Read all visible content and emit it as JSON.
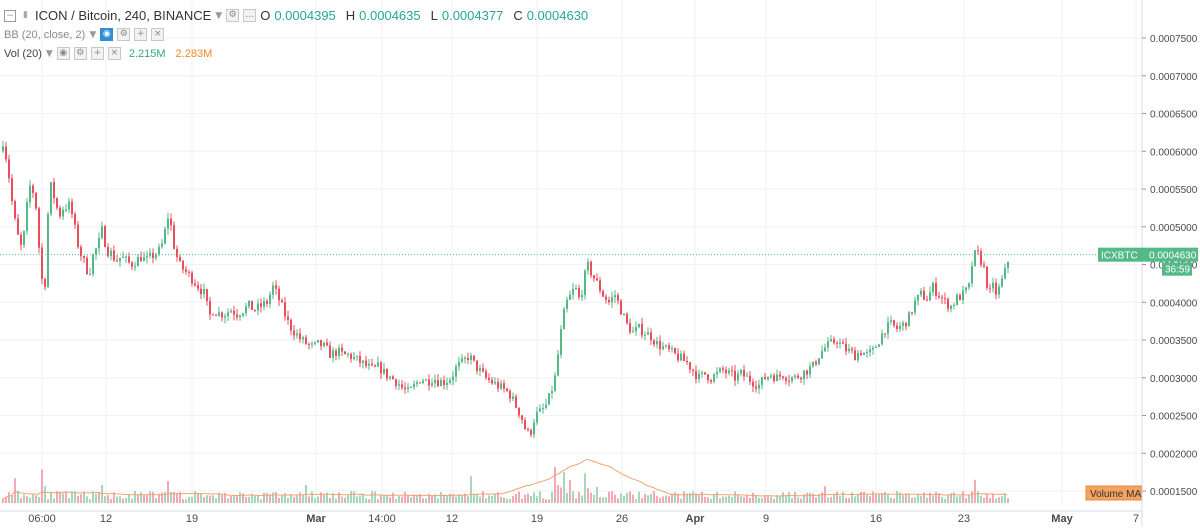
{
  "header": {
    "symbol": "ICON / Bitcoin, 240, BINANCE",
    "open_label": "O",
    "open": "0.0004395",
    "high_label": "H",
    "high": "0.0004635",
    "low_label": "L",
    "low": "0.0004377",
    "close_label": "C",
    "close": "0.0004630"
  },
  "indicators": {
    "bb_label": "BB (20, close, 2)",
    "vol_label": "Vol (20)",
    "vol_value": "2.215M",
    "vol_ma_value": "2.283M"
  },
  "price_tag": {
    "symbol": "ICXBTC",
    "price": "0.0004630",
    "countdown": "36:59"
  },
  "volume_ma_badge": "Volume MA",
  "colors": {
    "up": "#53b987",
    "down": "#eb4d5c",
    "vol_up": "#a6d7bb",
    "vol_down": "#f2a9b2",
    "vol_ma": "#f0a474",
    "grid": "#eef1f5",
    "accent_blue": "#2e8ed8"
  },
  "chart_data": {
    "type": "candlestick",
    "title": "ICON / Bitcoin, 240, BINANCE",
    "y_axis": {
      "ticks": [
        "0.0001500",
        "0.0002000",
        "0.0002500",
        "0.0003000",
        "0.0003500",
        "0.0004000",
        "0.0004500",
        "0.0005000",
        "0.0005500",
        "0.0006000",
        "0.0006500",
        "0.0007000",
        "0.0007500"
      ],
      "range": [
        0.00011,
        0.0008
      ]
    },
    "x_axis": {
      "ticks": [
        "06:00",
        "12",
        "19",
        "Mar",
        "14:00",
        "12",
        "19",
        "26",
        "Apr",
        "9",
        "16",
        "23",
        "May",
        "7"
      ]
    },
    "grid": true,
    "series": [
      {
        "type": "price_path",
        "points": [
          [
            0,
            0.0006
          ],
          [
            3,
            0.00062
          ],
          [
            6,
            0.00058
          ],
          [
            9,
            0.00056
          ],
          [
            12,
            0.00052
          ],
          [
            15,
            0.0005
          ],
          [
            18,
            0.00048
          ],
          [
            21,
            0.00047
          ],
          [
            24,
            0.0005
          ],
          [
            27,
            0.00054
          ],
          [
            30,
            0.00056
          ],
          [
            33,
            0.00054
          ],
          [
            36,
            0.00052
          ],
          [
            39,
            0.00045
          ],
          [
            42,
            0.00042
          ],
          [
            45,
            0.00043
          ],
          [
            48,
            0.00056
          ],
          [
            51,
            0.00055
          ],
          [
            54,
            0.000535
          ],
          [
            57,
            0.00052
          ],
          [
            60,
            0.000515
          ],
          [
            63,
            0.00053
          ],
          [
            66,
            0.000525
          ],
          [
            69,
            0.00053
          ],
          [
            72,
            0.00051
          ],
          [
            75,
            0.00049
          ],
          [
            78,
            0.00047
          ],
          [
            81,
            0.00046
          ],
          [
            84,
            0.00045
          ],
          [
            87,
            0.00044
          ],
          [
            90,
            0.000445
          ],
          [
            93,
            0.00047
          ],
          [
            96,
            0.00047
          ],
          [
            99,
            0.000485
          ],
          [
            102,
            0.0005
          ],
          [
            105,
            0.00047
          ],
          [
            110,
            0.000465
          ],
          [
            115,
            0.000455
          ],
          [
            120,
            0.00046
          ],
          [
            125,
            0.000455
          ],
          [
            130,
            0.00045
          ],
          [
            135,
            0.000455
          ],
          [
            140,
            0.00046
          ],
          [
            145,
            0.000455
          ],
          [
            150,
            0.00046
          ],
          [
            155,
            0.000465
          ],
          [
            160,
            0.00047
          ],
          [
            165,
            0.0005
          ],
          [
            168,
            0.00052
          ],
          [
            172,
            0.00048
          ],
          [
            178,
            0.00045
          ],
          [
            185,
            0.00044
          ],
          [
            192,
            0.00043
          ],
          [
            198,
            0.00042
          ],
          [
            204,
            0.00041
          ],
          [
            208,
            0.00038
          ],
          [
            212,
            0.00039
          ],
          [
            218,
            0.000385
          ],
          [
            224,
            0.000385
          ],
          [
            230,
            0.00039
          ],
          [
            236,
            0.000385
          ],
          [
            242,
            0.00039
          ],
          [
            248,
            0.000395
          ],
          [
            254,
            0.00039
          ],
          [
            260,
            0.000395
          ],
          [
            266,
            0.0004
          ],
          [
            272,
            0.00042
          ],
          [
            276,
            0.00041
          ],
          [
            282,
            0.00039
          ],
          [
            288,
            0.00037
          ],
          [
            294,
            0.00036
          ],
          [
            300,
            0.00035
          ],
          [
            306,
            0.000345
          ],
          [
            312,
            0.00034
          ],
          [
            318,
            0.000345
          ],
          [
            324,
            0.00034
          ],
          [
            330,
            0.00033
          ],
          [
            336,
            0.000335
          ],
          [
            342,
            0.00033
          ],
          [
            348,
            0.00033
          ],
          [
            354,
            0.000325
          ],
          [
            360,
            0.00032
          ],
          [
            366,
            0.000315
          ],
          [
            372,
            0.00031
          ],
          [
            378,
            0.000315
          ],
          [
            384,
            0.000305
          ],
          [
            390,
            0.0003
          ],
          [
            396,
            0.000295
          ],
          [
            402,
            0.000285
          ],
          [
            408,
            0.00028
          ],
          [
            414,
            0.00029
          ],
          [
            420,
            0.0003
          ],
          [
            426,
            0.000295
          ],
          [
            432,
            0.0003
          ],
          [
            438,
            0.000295
          ],
          [
            444,
            0.000295
          ],
          [
            450,
            0.0003
          ],
          [
            456,
            0.000315
          ],
          [
            462,
            0.00032
          ],
          [
            468,
            0.00033
          ],
          [
            472,
            0.00032
          ],
          [
            478,
            0.00031
          ],
          [
            484,
            0.0003
          ],
          [
            490,
            0.000295
          ],
          [
            496,
            0.00029
          ],
          [
            502,
            0.000285
          ],
          [
            508,
            0.00028
          ],
          [
            514,
            0.000265
          ],
          [
            520,
            0.00025
          ],
          [
            526,
            0.000225
          ],
          [
            530,
            0.00023
          ],
          [
            534,
            0.00025
          ],
          [
            540,
            0.000255
          ],
          [
            546,
            0.000265
          ],
          [
            550,
            0.00028
          ],
          [
            554,
            0.0003
          ],
          [
            558,
            0.00034
          ],
          [
            562,
            0.00038
          ],
          [
            566,
            0.0004
          ],
          [
            570,
            0.00041
          ],
          [
            574,
            0.00042
          ],
          [
            578,
            0.000405
          ],
          [
            582,
            0.00042
          ],
          [
            586,
            0.00045
          ],
          [
            590,
            0.00044
          ],
          [
            594,
            0.00043
          ],
          [
            598,
            0.00042
          ],
          [
            602,
            0.00041
          ],
          [
            608,
            0.0004
          ],
          [
            614,
            0.00041
          ],
          [
            620,
            0.00039
          ],
          [
            626,
            0.00037
          ],
          [
            632,
            0.00036
          ],
          [
            638,
            0.000365
          ],
          [
            644,
            0.00036
          ],
          [
            650,
            0.000355
          ],
          [
            656,
            0.000345
          ],
          [
            662,
            0.00034
          ],
          [
            668,
            0.000335
          ],
          [
            674,
            0.00033
          ],
          [
            680,
            0.000325
          ],
          [
            686,
            0.00032
          ],
          [
            692,
            0.00031
          ],
          [
            698,
            0.0003
          ],
          [
            704,
            0.000305
          ],
          [
            710,
            0.0003
          ],
          [
            716,
            0.000305
          ],
          [
            722,
            0.00031
          ],
          [
            728,
            0.000305
          ],
          [
            734,
            0.0003
          ],
          [
            740,
            0.000305
          ],
          [
            746,
            0.0003
          ],
          [
            752,
            0.000295
          ],
          [
            758,
            0.00029
          ],
          [
            764,
            0.0003
          ],
          [
            770,
            0.000305
          ],
          [
            776,
            0.0003
          ],
          [
            782,
            0.000305
          ],
          [
            788,
            0.0003
          ],
          [
            794,
            0.0003
          ],
          [
            800,
            0.000305
          ],
          [
            806,
            0.00031
          ],
          [
            812,
            0.000315
          ],
          [
            818,
            0.00033
          ],
          [
            824,
            0.00034
          ],
          [
            830,
            0.000345
          ],
          [
            836,
            0.00035
          ],
          [
            842,
            0.00034
          ],
          [
            848,
            0.000335
          ],
          [
            854,
            0.00033
          ],
          [
            860,
            0.000335
          ],
          [
            866,
            0.00033
          ],
          [
            872,
            0.000335
          ],
          [
            878,
            0.00035
          ],
          [
            884,
            0.000365
          ],
          [
            890,
            0.00037
          ],
          [
            896,
            0.000365
          ],
          [
            902,
            0.00037
          ],
          [
            908,
            0.00038
          ],
          [
            914,
            0.0004
          ],
          [
            920,
            0.00041
          ],
          [
            926,
            0.000405
          ],
          [
            932,
            0.00042
          ],
          [
            938,
            0.00041
          ],
          [
            944,
            0.0004
          ],
          [
            950,
            0.000395
          ],
          [
            956,
            0.000405
          ],
          [
            962,
            0.00041
          ],
          [
            968,
            0.00042
          ],
          [
            972,
            0.00046
          ],
          [
            976,
            0.000465
          ],
          [
            980,
            0.000455
          ],
          [
            984,
            0.00044
          ],
          [
            988,
            0.00041
          ],
          [
            992,
            0.00042
          ],
          [
            996,
            0.00041
          ],
          [
            1000,
            0.000425
          ],
          [
            1004,
            0.00044
          ],
          [
            1008,
            0.00046
          ]
        ]
      },
      {
        "type": "volume",
        "spikes": [
          [
            15,
            0.62
          ],
          [
            42,
            0.84
          ],
          [
            100,
            0.45
          ],
          [
            168,
            0.55
          ],
          [
            305,
            0.3
          ],
          [
            470,
            0.45
          ],
          [
            555,
            0.9
          ],
          [
            562,
            0.78
          ],
          [
            570,
            0.58
          ],
          [
            585,
            0.74
          ],
          [
            595,
            0.4
          ],
          [
            823,
            0.42
          ],
          [
            975,
            0.58
          ]
        ],
        "ma_peak_near": 587
      }
    ]
  }
}
